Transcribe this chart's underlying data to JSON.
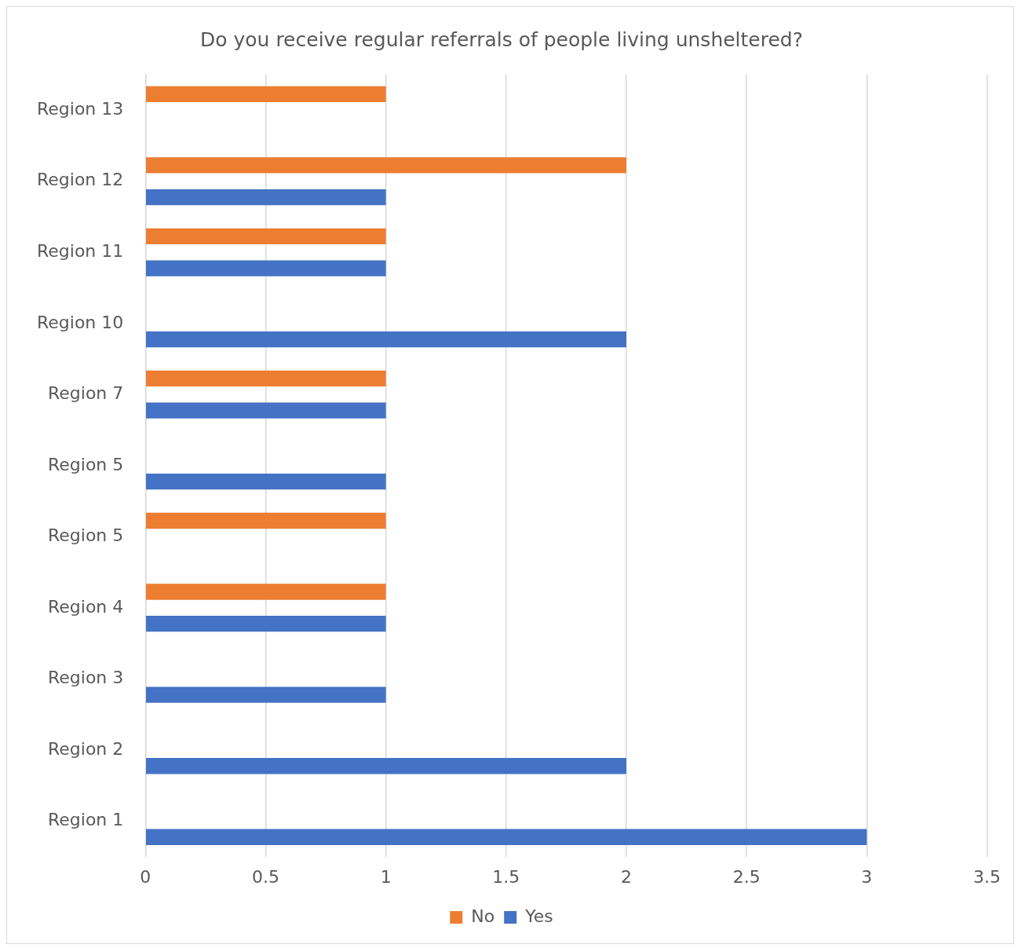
{
  "chart_data": {
    "type": "bar",
    "orientation": "horizontal",
    "title": "Do you receive regular referrals of people living unsheltered?",
    "categories": [
      "Region 13",
      "Region 12",
      "Region 11",
      "Region 10",
      "Region 7",
      "Region 5",
      "Region 5",
      "Region 4",
      "Region 3",
      "Region 2",
      "Region 1"
    ],
    "series": [
      {
        "name": "No",
        "color": "#ed7d31",
        "values": [
          1,
          2,
          1,
          null,
          1,
          null,
          1,
          1,
          null,
          null,
          null
        ]
      },
      {
        "name": "Yes",
        "color": "#4472c4",
        "values": [
          null,
          1,
          1,
          2,
          1,
          1,
          null,
          1,
          1,
          2,
          3
        ]
      }
    ],
    "xlim": [
      0,
      3.5
    ],
    "xticks": [
      0,
      0.5,
      1,
      1.5,
      2,
      2.5,
      3,
      3.5
    ],
    "grid": "x",
    "legend": "bottom"
  }
}
